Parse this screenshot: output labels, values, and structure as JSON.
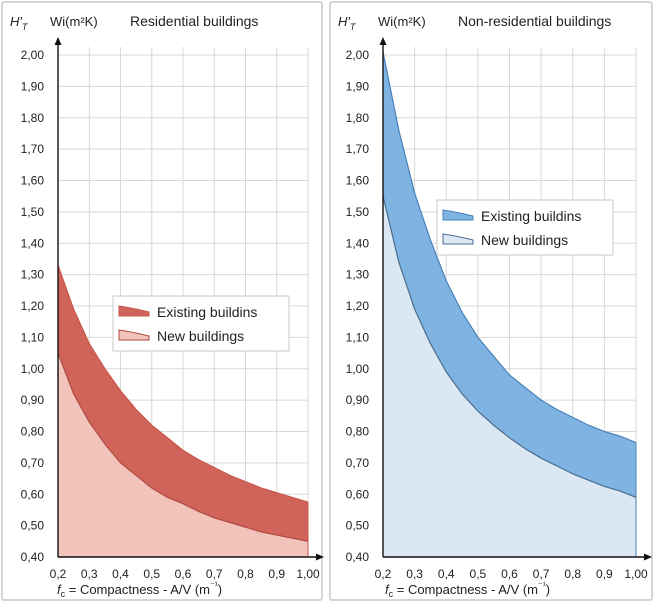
{
  "chart_data": [
    {
      "type": "area",
      "title": "Residential buildings",
      "ylabel": "Wi(m²K)",
      "ylabel_symbol": "H'T",
      "xlabel": "fc = Compactness - A/V (m⁻¹)",
      "xlabel_symbol": "fc",
      "xlabel_text": "= Compactness - A/V (m",
      "xlabel_unit_exp": "⁻¹",
      "xlabel_close": ")",
      "xlim": [
        0.2,
        1.0
      ],
      "ylim": [
        0.4,
        2.0
      ],
      "xticks": [
        "0,2",
        "0,3",
        "0,4",
        "0,5",
        "0,6",
        "0,7",
        "0,8",
        "0,9",
        "1,00"
      ],
      "yticks": [
        "0,40",
        "0,50",
        "0,60",
        "0,70",
        "0,80",
        "0,90",
        "1,00",
        "1,10",
        "1,20",
        "1,30",
        "1,40",
        "1,50",
        "1,60",
        "1,70",
        "1,80",
        "1,90",
        "2,00"
      ],
      "grid": true,
      "legend_placement": "center-right",
      "x": [
        0.2,
        0.25,
        0.3,
        0.35,
        0.4,
        0.45,
        0.5,
        0.55,
        0.6,
        0.65,
        0.7,
        0.75,
        0.8,
        0.85,
        0.9,
        0.95,
        1.0
      ],
      "series": [
        {
          "name": "Existing buildins",
          "color": "#c9574a",
          "fill": "#d0645a",
          "values": [
            1.33,
            1.19,
            1.08,
            1.0,
            0.93,
            0.87,
            0.82,
            0.78,
            0.74,
            0.71,
            0.685,
            0.66,
            0.64,
            0.62,
            0.605,
            0.59,
            0.575
          ]
        },
        {
          "name": "New buildings",
          "color": "#b04a40",
          "fill": "#f2c3bb",
          "values": [
            1.05,
            0.92,
            0.83,
            0.76,
            0.7,
            0.66,
            0.62,
            0.59,
            0.57,
            0.545,
            0.525,
            0.51,
            0.495,
            0.48,
            0.47,
            0.46,
            0.45
          ]
        }
      ]
    },
    {
      "type": "area",
      "title": "Non-residential buildings",
      "ylabel": "Wi(m²K)",
      "ylabel_symbol": "H'T",
      "xlabel": "fc = Compactness - A/V (m⁻¹)",
      "xlabel_symbol": "fc",
      "xlabel_text": "= Compactness - A/V (m",
      "xlabel_unit_exp": "⁻¹",
      "xlabel_close": ")",
      "xlim": [
        0.2,
        1.0
      ],
      "ylim": [
        0.4,
        2.0
      ],
      "xticks": [
        "0,2",
        "0,3",
        "0,4",
        "0,5",
        "0,6",
        "0,7",
        "0,8",
        "0,9",
        "1,00"
      ],
      "yticks": [
        "0,40",
        "0,50",
        "0,60",
        "0,70",
        "0,80",
        "0,90",
        "1,00",
        "1,10",
        "1,20",
        "1,30",
        "1,40",
        "1,50",
        "1,60",
        "1,70",
        "1,80",
        "1,90",
        "2,00"
      ],
      "grid": true,
      "legend_placement": "center-right",
      "x": [
        0.2,
        0.25,
        0.3,
        0.35,
        0.4,
        0.45,
        0.5,
        0.55,
        0.6,
        0.65,
        0.7,
        0.75,
        0.8,
        0.85,
        0.9,
        0.95,
        1.0
      ],
      "series": [
        {
          "name": "Existing buildins",
          "color": "#4a82b8",
          "fill": "#7eb3e2",
          "values": [
            2.01,
            1.76,
            1.56,
            1.41,
            1.28,
            1.18,
            1.1,
            1.04,
            0.98,
            0.94,
            0.9,
            0.87,
            0.845,
            0.82,
            0.8,
            0.785,
            0.765
          ]
        },
        {
          "name": "New buildings",
          "color": "#4a6e90",
          "fill": "#dbe8f4",
          "values": [
            1.55,
            1.34,
            1.19,
            1.08,
            0.99,
            0.92,
            0.865,
            0.82,
            0.78,
            0.745,
            0.715,
            0.69,
            0.665,
            0.645,
            0.625,
            0.61,
            0.59
          ]
        }
      ]
    }
  ]
}
